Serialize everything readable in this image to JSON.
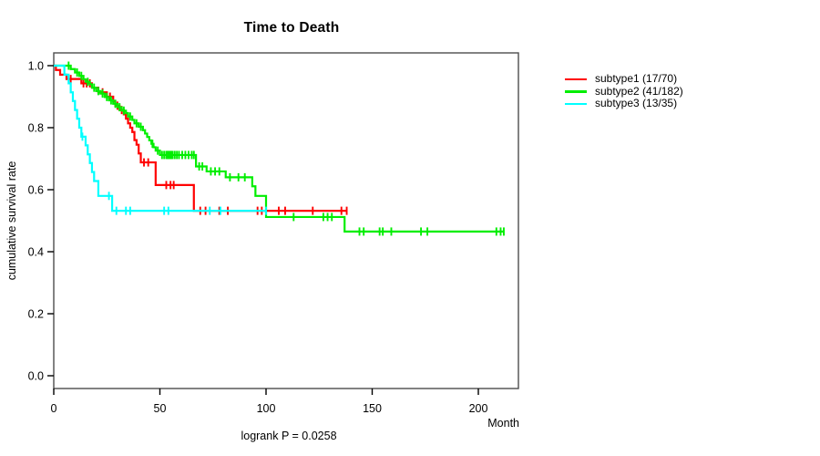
{
  "chart_data": {
    "type": "line",
    "variant": "kaplan-meier-step-curves",
    "title": "Time to Death",
    "xlabel": "Month",
    "ylabel": "cumulative survival rate",
    "annotation": "logrank P = 0.0258",
    "grid": false,
    "box_color": "#4d4d4d",
    "axis_color": "#000000",
    "x_axis": {
      "ticks": [
        0,
        50,
        100,
        150,
        200
      ],
      "range": [
        0,
        219
      ]
    },
    "y_axis": {
      "tick_labels": [
        "0.0",
        "0.2",
        "0.4",
        "0.6",
        "0.8",
        "1.0"
      ],
      "tick_values": [
        0.0,
        0.2,
        0.4,
        0.6,
        0.8,
        1.0
      ],
      "range": [
        0,
        1
      ]
    },
    "legend": {
      "position": "right-outside",
      "items": [
        {
          "label": "subtype1 (17/70)",
          "color": "#FF0000"
        },
        {
          "label": "subtype2 (41/182)",
          "color": "#00EE00"
        },
        {
          "label": "subtype3 (13/35)",
          "color": "#00FFFF"
        }
      ]
    },
    "series": [
      {
        "name": "subtype1",
        "events": 17,
        "n": 70,
        "color": "#FF0000",
        "steps": [
          [
            0,
            1.0
          ],
          [
            1,
            0.986
          ],
          [
            3,
            0.971
          ],
          [
            6,
            0.957
          ],
          [
            13,
            0.943
          ],
          [
            18,
            0.929
          ],
          [
            21,
            0.914
          ],
          [
            25,
            0.9
          ],
          [
            28,
            0.886
          ],
          [
            29,
            0.871
          ],
          [
            31,
            0.857
          ],
          [
            33,
            0.843
          ],
          [
            34,
            0.829
          ],
          [
            35,
            0.814
          ],
          [
            36,
            0.8
          ],
          [
            37,
            0.786
          ],
          [
            38,
            0.76
          ],
          [
            39,
            0.745
          ],
          [
            40,
            0.717
          ],
          [
            41,
            0.688
          ],
          [
            48,
            0.615
          ],
          [
            66,
            0.532
          ]
        ],
        "censor_times": [
          8,
          14,
          15.5,
          17,
          23,
          26.5,
          30,
          32,
          42.5,
          44.5,
          53,
          55,
          56.5,
          69,
          71.5,
          78,
          82,
          96,
          98,
          106,
          109,
          122,
          135.5,
          138
        ],
        "end_time": 138
      },
      {
        "name": "subtype2",
        "events": 41,
        "n": 182,
        "color": "#00EE00",
        "steps": [
          [
            0,
            1.0
          ],
          [
            8,
            0.989
          ],
          [
            10,
            0.978
          ],
          [
            12,
            0.967
          ],
          [
            14,
            0.956
          ],
          [
            15,
            0.948
          ],
          [
            17,
            0.94
          ],
          [
            18,
            0.929
          ],
          [
            20,
            0.918
          ],
          [
            22,
            0.91
          ],
          [
            24,
            0.899
          ],
          [
            26,
            0.888
          ],
          [
            28,
            0.877
          ],
          [
            30,
            0.866
          ],
          [
            32,
            0.855
          ],
          [
            34,
            0.847
          ],
          [
            35,
            0.836
          ],
          [
            37,
            0.825
          ],
          [
            38,
            0.814
          ],
          [
            40,
            0.803
          ],
          [
            42,
            0.792
          ],
          [
            43,
            0.781
          ],
          [
            44,
            0.77
          ],
          [
            45,
            0.759
          ],
          [
            46,
            0.748
          ],
          [
            47,
            0.737
          ],
          [
            48,
            0.726
          ],
          [
            50,
            0.712
          ],
          [
            67,
            0.675
          ],
          [
            72,
            0.659
          ],
          [
            81,
            0.64
          ],
          [
            93.5,
            0.611
          ],
          [
            95,
            0.58
          ],
          [
            100,
            0.512
          ],
          [
            137,
            0.465
          ]
        ],
        "censor_times": [
          7,
          11,
          13,
          16,
          19,
          21,
          23,
          25,
          27,
          29,
          31,
          33,
          36,
          39,
          41,
          46.5,
          49,
          51,
          52,
          53,
          53.6,
          54.2,
          54.8,
          55.4,
          56,
          57,
          58,
          59,
          60.5,
          62,
          63.5,
          65,
          66,
          68.5,
          70,
          74,
          76,
          78,
          83,
          87,
          90,
          113,
          127,
          129,
          131,
          144,
          146,
          153.5,
          155,
          159,
          173,
          176,
          208.5,
          210.5,
          212
        ],
        "end_time": 212
      },
      {
        "name": "subtype3",
        "events": 13,
        "n": 35,
        "color": "#00FFFF",
        "steps": [
          [
            0,
            1.0
          ],
          [
            5,
            0.971
          ],
          [
            7,
            0.943
          ],
          [
            8,
            0.914
          ],
          [
            9,
            0.886
          ],
          [
            10,
            0.857
          ],
          [
            11,
            0.829
          ],
          [
            12,
            0.8
          ],
          [
            13,
            0.771
          ],
          [
            15,
            0.743
          ],
          [
            16,
            0.714
          ],
          [
            17,
            0.686
          ],
          [
            18,
            0.657
          ],
          [
            19,
            0.628
          ],
          [
            21,
            0.58
          ],
          [
            27.5,
            0.532
          ]
        ],
        "censor_times": [
          13.5,
          26,
          29.5,
          34,
          36,
          52,
          54,
          73.5,
          78.5,
          100
        ],
        "end_time": 100
      }
    ]
  }
}
